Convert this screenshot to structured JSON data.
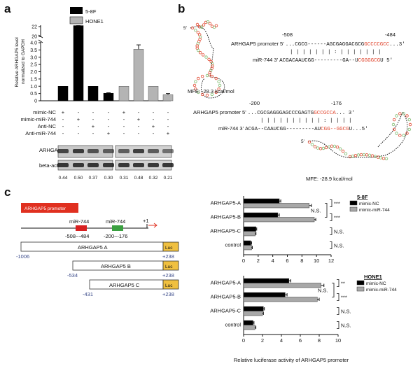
{
  "panels": {
    "a": "a",
    "b": "b",
    "c": "c"
  },
  "panel_a": {
    "legend": [
      "5-8F",
      "HONE1"
    ],
    "ylabel": "Relative ARHGAP5 level\nnormalized to GAPDH",
    "upper_ticks": [
      "22",
      "20",
      "4.0",
      "3.5",
      "3.0",
      "2.5",
      "2.0",
      "1.5",
      "1.0",
      "0.5",
      "0"
    ],
    "treatment_rows": [
      {
        "label": "mimic-NC",
        "marks": [
          "+",
          "-",
          "-",
          "-",
          "+",
          "-",
          "-",
          "-"
        ]
      },
      {
        "label": "mimic-miR-744",
        "marks": [
          "-",
          "+",
          "-",
          "-",
          "-",
          "+",
          "-",
          "-"
        ]
      },
      {
        "label": "Anti-NC",
        "marks": [
          "-",
          "-",
          "+",
          "-",
          "-",
          "-",
          "+",
          "-"
        ]
      },
      {
        "label": "Anti-miR-744",
        "marks": [
          "-",
          "-",
          "-",
          "+",
          "-",
          "-",
          "-",
          "+"
        ]
      }
    ],
    "blot_labels": [
      "ARHGAP5",
      "beta-actin"
    ],
    "band_values": [
      "0.44",
      "0.50",
      "0.37",
      "0.30",
      "0.31",
      "0.48",
      "0.32",
      "0.21"
    ],
    "colors": {
      "s58f": "#000000",
      "hone1": "#b4b4b4"
    }
  },
  "chart_data": [
    {
      "type": "bar",
      "panel": "a",
      "categories": [
        "mimic-NC",
        "mimic-miR-744",
        "Anti-NC",
        "Anti-miR-744"
      ],
      "series": [
        {
          "name": "5-8F",
          "values": [
            1.0,
            23.0,
            1.0,
            0.52
          ],
          "errors": [
            0,
            1.0,
            0,
            0.03
          ]
        },
        {
          "name": "HONE1",
          "values": [
            1.0,
            3.55,
            1.0,
            0.42
          ],
          "errors": [
            0,
            0.3,
            0,
            0.08
          ]
        }
      ]
    },
    {
      "type": "bar",
      "orientation": "horizontal",
      "panel": "c-top",
      "categories": [
        "ARHGAP5-A",
        "ARHGAP5-B",
        "ARHGAP5-C",
        "control"
      ],
      "series": [
        {
          "name": "mimic-NC",
          "values": [
            4.9,
            4.7,
            1.7,
            1.0
          ],
          "errors": [
            0.2,
            0.2,
            0.1,
            0.1
          ]
        },
        {
          "name": "mimic-miR-744",
          "values": [
            9.0,
            9.7,
            1.6,
            1.1
          ],
          "errors": [
            0.3,
            0.2,
            0.1,
            0.1
          ]
        }
      ],
      "xlim": [
        0,
        12
      ],
      "xticks": [
        "0",
        "2",
        "4",
        "6",
        "8",
        "10",
        "12"
      ],
      "legend_title": "5-8F",
      "significance": [
        "***",
        "N.S.",
        "***",
        "N.S.",
        "N.S."
      ]
    },
    {
      "type": "bar",
      "orientation": "horizontal",
      "panel": "c-bottom",
      "categories": [
        "ARHGAP5-A",
        "ARHGAP5-B",
        "ARHGAP5-C",
        "control"
      ],
      "series": [
        {
          "name": "mimic-NC",
          "values": [
            4.8,
            4.4,
            2.1,
            1.0
          ],
          "errors": [
            0.2,
            0.2,
            0.1,
            0.1
          ]
        },
        {
          "name": "mimic-miR-744",
          "values": [
            8.2,
            7.8,
            2.0,
            1.2
          ],
          "errors": [
            0.3,
            0.2,
            0.1,
            0.1
          ]
        }
      ],
      "xlim": [
        0,
        10
      ],
      "xticks": [
        "0",
        "2",
        "4",
        "6",
        "8",
        "10"
      ],
      "legend_title": "HONE1",
      "significance": [
        "**",
        "N.S.",
        "***",
        "N.S.",
        "N.S."
      ],
      "xlabel": "Relative luciferase activity of ARHGAP5 promoter"
    }
  ],
  "panel_b": {
    "site1": {
      "start": "-508",
      "end": "-484",
      "promoter_label": "ARHGAP5 promoter 5'",
      "promoter_seq": "...CGCG------AGCGAGGACGCG",
      "promoter_red": "GCCCCGCC",
      "promoter_tail": "...3'",
      "pairing": "| |  |  |  |       | | : | | | | | | |",
      "mir_label": "miR-744 3'",
      "mir_seq": "ACGACAAUCGG---------GA--U",
      "mir_red": "CGGGGCG",
      "mir_tail": "U    5'",
      "mfe": "MFE: -28.3 kcal/mol",
      "five": "5'"
    },
    "site2": {
      "start": "-200",
      "end": "-176",
      "promoter_label": "ARHGAP5 promoter 5'",
      "promoter_seq": "...CGCGAGGGAGCCCGAGTG",
      "promoter_red": "GCCGCCA",
      "promoter_tail": "...  3'",
      "pairing": "|  |  |  |  | | |  |           | | : | | | |",
      "mir_label": "miR-744 3'",
      "mir_seq": "ACGA--CAAUCGG---------AU",
      "mir_red": "CGG--GGCG",
      "mir_tail": "U...5'",
      "mfe": "MFE: -28.9 kcal/mol",
      "five": "5'"
    }
  },
  "panel_c": {
    "promoter_box": "ARHGAP5 promoter",
    "site1_name": "miR-744",
    "site1_range": "-508~-484",
    "site2_name": "miR-744",
    "site2_range": "-200~-176",
    "tss": "+1",
    "constructs": [
      {
        "name": "ARHGAP5 A",
        "start": "-1006",
        "end": "+238"
      },
      {
        "name": "ARHGAP5 B",
        "start": "-534",
        "end": "+238"
      },
      {
        "name": "ARHGAP5 C",
        "start": "-431",
        "end": "+238"
      }
    ],
    "luc": "Luc",
    "colors": {
      "mimic_nc": "#000000",
      "mimic_mir": "#a8a8a8",
      "promoter": "#e03020",
      "site1": "#d82020",
      "site2": "#3aa040",
      "luc": "#f0c040"
    }
  }
}
